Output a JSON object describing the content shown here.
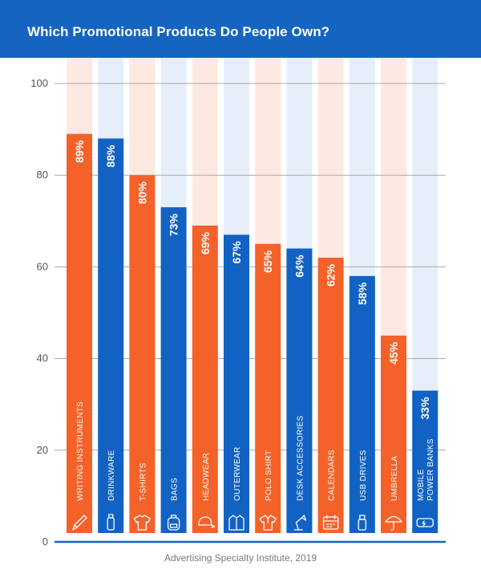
{
  "header": {
    "title": "Which Promotional Products Do People Own?"
  },
  "source": "Advertising Specialty Institute, 2019",
  "colors": {
    "header": "#1565c0",
    "orange": "#f4622a",
    "blue": "#1262c3",
    "orange_track": "#fde9e1",
    "blue_track": "#e6eef9"
  },
  "chart_data": {
    "type": "bar",
    "title": "Which Promotional Products Do People Own?",
    "ylim": [
      0,
      100
    ],
    "yticks": [
      0,
      20,
      40,
      60,
      80,
      100
    ],
    "grid": true,
    "categories": [
      [
        "WRITING INSTRUMENTS"
      ],
      [
        "DRINKWARE"
      ],
      [
        "T-SHIRTS"
      ],
      [
        "BAGS"
      ],
      [
        "HEADWEAR"
      ],
      [
        "OUTERWEAR"
      ],
      [
        "POLO SHIRT"
      ],
      [
        "DESK ACCESSORIES"
      ],
      [
        "CALENDARS"
      ],
      [
        "USB DRIVES"
      ],
      [
        "UMBRELLA"
      ],
      [
        "MOBILE",
        "POWER BANKS"
      ]
    ],
    "values": [
      89,
      88,
      80,
      73,
      69,
      67,
      65,
      64,
      62,
      58,
      45,
      33
    ],
    "value_labels": [
      "89%",
      "88%",
      "80%",
      "73%",
      "69%",
      "67%",
      "65%",
      "64%",
      "62%",
      "58%",
      "45%",
      "33%"
    ],
    "bar_colors": [
      "orange",
      "blue",
      "orange",
      "blue",
      "orange",
      "blue",
      "orange",
      "blue",
      "orange",
      "blue",
      "orange",
      "blue"
    ],
    "icons": [
      "pencil-icon",
      "bottle-icon",
      "tshirt-icon",
      "backpack-icon",
      "cap-icon",
      "jacket-icon",
      "polo-shirt-icon",
      "desk-lamp-icon",
      "calendar-icon",
      "usb-drive-icon",
      "umbrella-icon",
      "power-bank-icon"
    ]
  }
}
